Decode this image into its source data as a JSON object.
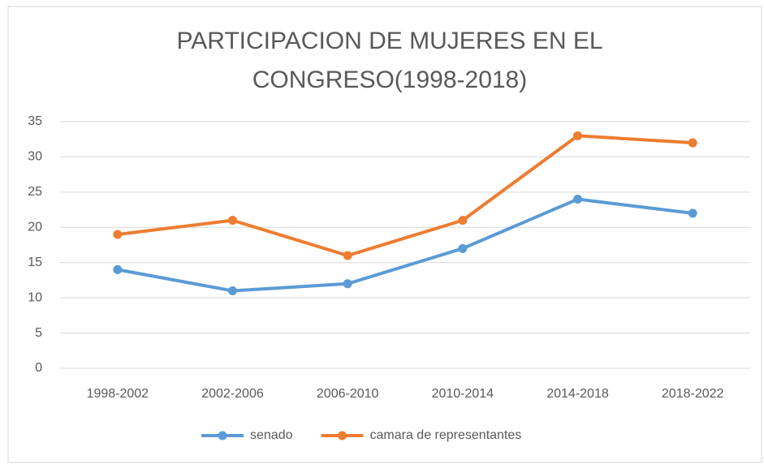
{
  "chart_data": {
    "type": "line",
    "title": [
      "PARTICIPACION DE MUJERES EN EL",
      "CONGRESO(1998-2018)"
    ],
    "categories": [
      "1998-2002",
      "2002-2006",
      "2006-2010",
      "2010-2014",
      "2014-2018",
      "2018-2022"
    ],
    "series": [
      {
        "name": "senado",
        "color": "#5b9bd5",
        "values": [
          14,
          11,
          12,
          17,
          24,
          22
        ]
      },
      {
        "name": "camara de representantes",
        "color": "#ed7d31",
        "values": [
          19,
          21,
          16,
          21,
          33,
          32
        ]
      }
    ],
    "ylim": [
      0,
      35
    ],
    "yticks": [
      0,
      5,
      10,
      15,
      20,
      25,
      30,
      35
    ],
    "grid": true,
    "legend": "bottom"
  }
}
